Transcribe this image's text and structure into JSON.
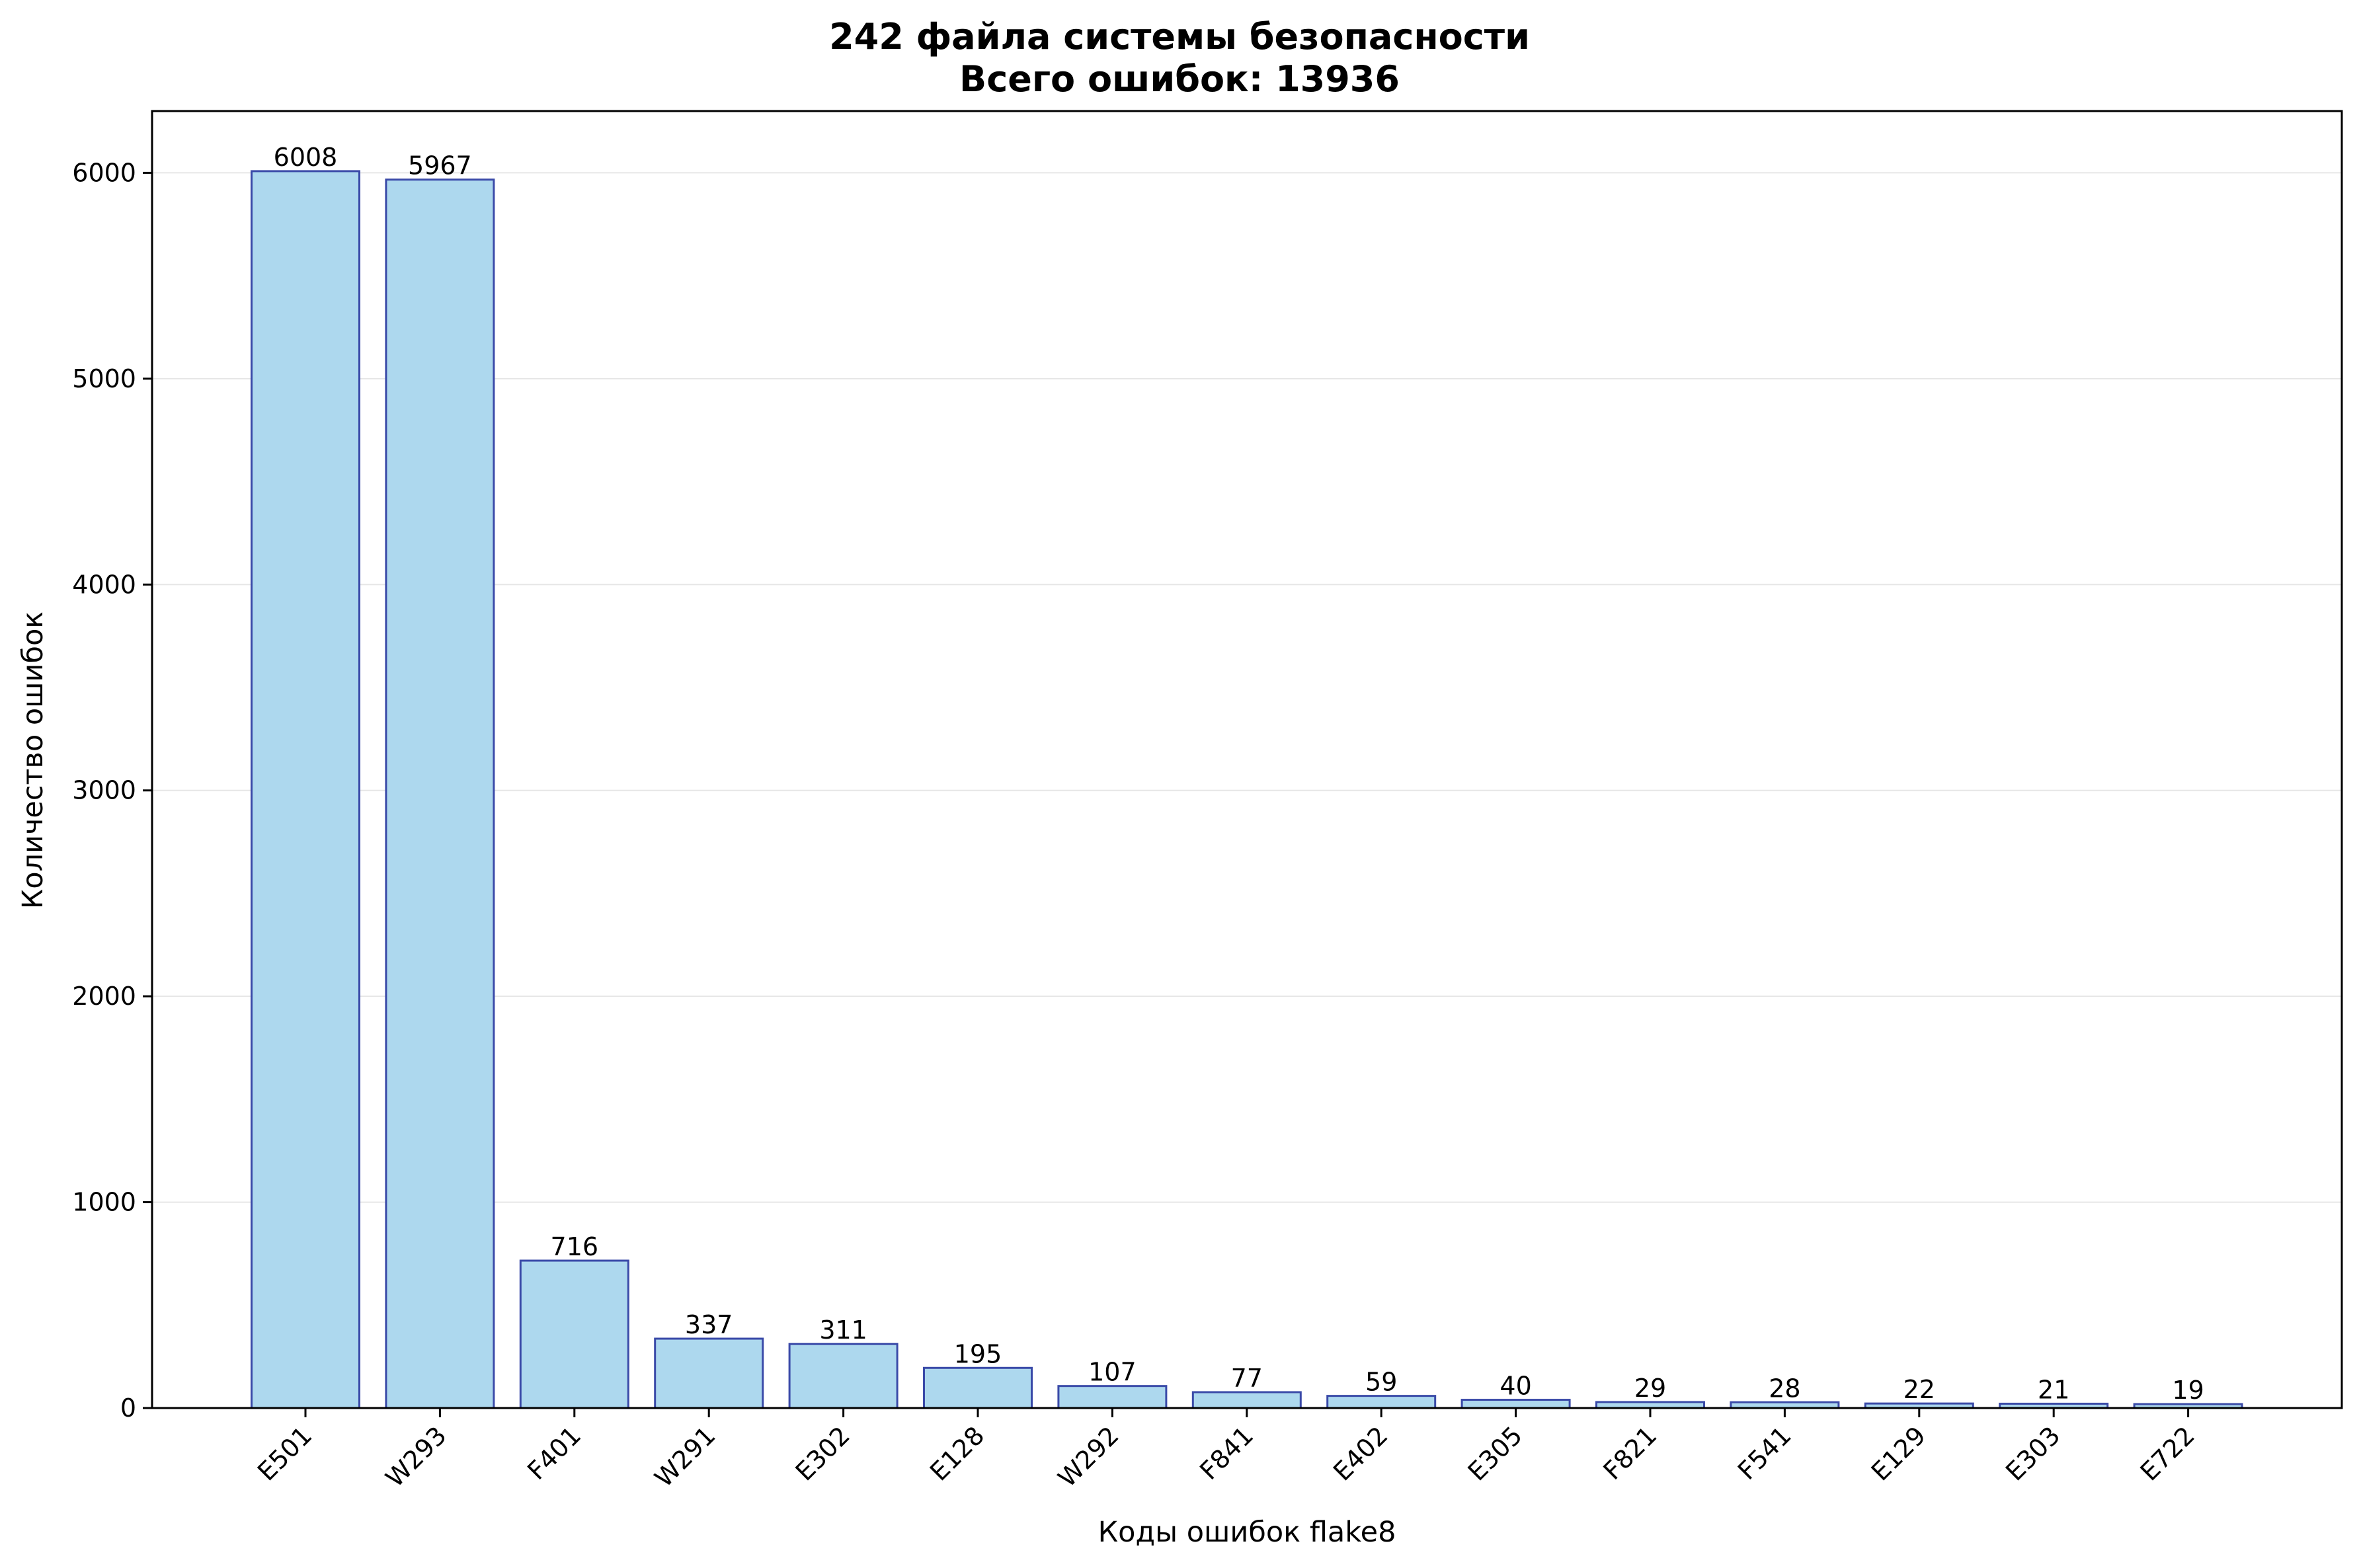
{
  "chart_data": {
    "type": "bar",
    "title": "242 файла системы безопасности",
    "subtitle": "Всего ошибок: 13936",
    "xlabel": "Коды ошибок flake8",
    "ylabel": "Количество ошибок",
    "categories": [
      "E501",
      "W293",
      "F401",
      "W291",
      "E302",
      "E128",
      "W292",
      "F841",
      "E402",
      "E305",
      "F821",
      "F541",
      "E129",
      "E303",
      "E722"
    ],
    "values": [
      6008,
      5967,
      716,
      337,
      311,
      195,
      107,
      77,
      59,
      40,
      29,
      28,
      22,
      21,
      19
    ],
    "data_labels": [
      "6008",
      "5967",
      "716",
      "337",
      "311",
      "195",
      "107",
      "77",
      "59",
      "40",
      "29",
      "28",
      "22",
      "21",
      "19"
    ],
    "yticks": [
      0,
      1000,
      2000,
      3000,
      4000,
      5000,
      6000
    ],
    "ytick_labels": [
      "0",
      "1000",
      "2000",
      "3000",
      "4000",
      "5000",
      "6000"
    ],
    "ylim": [
      0,
      6300
    ],
    "grid": "horizontal",
    "legend": "none",
    "colors": {
      "bar_fill": "#add8ee",
      "bar_edge": "#3a4aa8",
      "grid": "#e6e6e6",
      "axis": "#000000"
    }
  }
}
